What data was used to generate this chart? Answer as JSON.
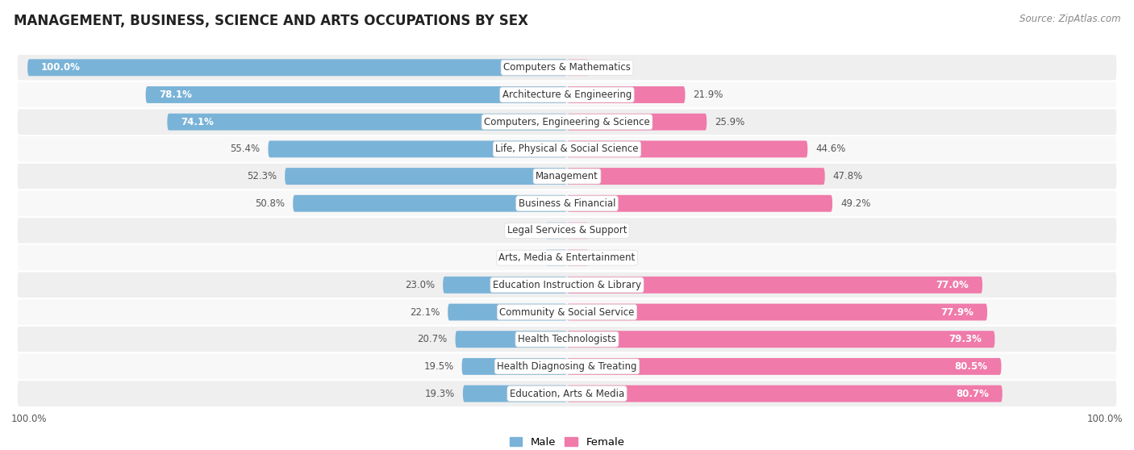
{
  "title": "MANAGEMENT, BUSINESS, SCIENCE AND ARTS OCCUPATIONS BY SEX",
  "source": "Source: ZipAtlas.com",
  "categories": [
    "Computers & Mathematics",
    "Architecture & Engineering",
    "Computers, Engineering & Science",
    "Life, Physical & Social Science",
    "Management",
    "Business & Financial",
    "Legal Services & Support",
    "Arts, Media & Entertainment",
    "Education Instruction & Library",
    "Community & Social Service",
    "Health Technologists",
    "Health Diagnosing & Treating",
    "Education, Arts & Media"
  ],
  "male_pct": [
    100.0,
    78.1,
    74.1,
    55.4,
    52.3,
    50.8,
    0.0,
    0.0,
    23.0,
    22.1,
    20.7,
    19.5,
    19.3
  ],
  "female_pct": [
    0.0,
    21.9,
    25.9,
    44.6,
    47.8,
    49.2,
    0.0,
    0.0,
    77.0,
    77.9,
    79.3,
    80.5,
    80.7
  ],
  "male_color": "#7ab3d8",
  "female_color": "#f07aaa",
  "male_color_zero": "#b8d4e8",
  "female_color_zero": "#f5b8d0",
  "row_bg_color": "#efefef",
  "row_alt_color": "#f8f8f8",
  "bg_color": "#ffffff",
  "label_fontsize": 8.5,
  "title_fontsize": 12,
  "bar_height": 0.62,
  "legend_male": "Male",
  "legend_female": "Female",
  "xlim": 100.0,
  "zero_stub": 4.0
}
